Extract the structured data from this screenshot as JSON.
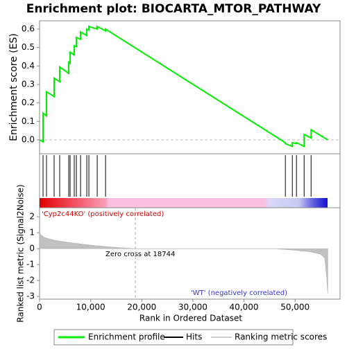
{
  "chart_data": [
    {
      "type": "line",
      "title": "Enrichment plot: BIOCARTA_MTOR_PATHWAY",
      "y_label": "Enrichment score (ES)",
      "xlim": [
        0,
        58800
      ],
      "ylim": [
        -0.07,
        0.65
      ],
      "yticks": [
        {
          "value": 0,
          "label": "0.0"
        },
        0.1,
        0.2,
        0.3,
        0.4,
        0.5,
        0.6
      ],
      "series": [
        {
          "name": "Enrichment profile",
          "color": "#00ee00",
          "x": [
            0,
            680,
            680,
            1360,
            1360,
            2850,
            2850,
            3940,
            3940,
            5710,
            5710,
            5980,
            5980,
            6790,
            6790,
            7200,
            7200,
            8020,
            8020,
            9240,
            9240,
            9650,
            9650,
            11280,
            11280,
            12910,
            12910,
            48100,
            48100,
            49460,
            49460,
            50270,
            50270,
            51770,
            51770,
            53130,
            53130,
            56400
          ],
          "values": [
            0,
            -0.01,
            0.145,
            0.13,
            0.26,
            0.235,
            0.335,
            0.315,
            0.395,
            0.36,
            0.42,
            0.415,
            0.475,
            0.46,
            0.51,
            0.505,
            0.555,
            0.545,
            0.585,
            0.565,
            0.6,
            0.595,
            0.615,
            0.6,
            0.615,
            0.59,
            0.6,
            -0.015,
            -0.02,
            -0.035,
            -0.015,
            -0.02,
            -0.015,
            -0.035,
            0.03,
            0.01,
            0.055,
            0.0
          ]
        }
      ]
    },
    {
      "type": "hits",
      "name": "Hits",
      "color": "#000000",
      "hits": [
        680,
        1360,
        2850,
        3940,
        5710,
        5980,
        6790,
        7200,
        8020,
        9240,
        9650,
        11280,
        12910,
        48100,
        49460,
        50270,
        51770,
        53130
      ]
    },
    {
      "type": "area",
      "y_label": "Ranked list metric (Signal2Noise)",
      "x_label": "Rank in Ordered Dataset",
      "xlim": [
        0,
        58800
      ],
      "ylim": [
        -3.17,
        2.57
      ],
      "xticks": [
        0,
        {
          "value": 10000,
          "label": "10,000"
        },
        {
          "value": 20000,
          "label": "20,000"
        },
        {
          "value": 30000,
          "label": "30,000"
        },
        {
          "value": 40000,
          "label": "40,000"
        },
        {
          "value": 50000,
          "label": "50,000"
        }
      ],
      "yticks": [
        2,
        1,
        0,
        -1,
        -2,
        -3
      ],
      "series": [
        {
          "name": "Ranking metric scores",
          "color": "#c0c0c0",
          "x": [
            0,
            200,
            1000,
            3000,
            6000,
            10000,
            14000,
            18744,
            46000,
            50000,
            53000,
            55000,
            55800,
            56100,
            56400
          ],
          "values": [
            1.1,
            0.9,
            0.7,
            0.52,
            0.38,
            0.22,
            0.1,
            0,
            0,
            -0.1,
            -0.2,
            -0.35,
            -0.6,
            -1.5,
            -2.8
          ]
        }
      ],
      "annotations": [
        "'Cyp2c44KO' (positively correlated)",
        "Zero cross at 18744",
        "'WT' (negatively correlated)"
      ],
      "zero_cross": 18744
    }
  ]
}
